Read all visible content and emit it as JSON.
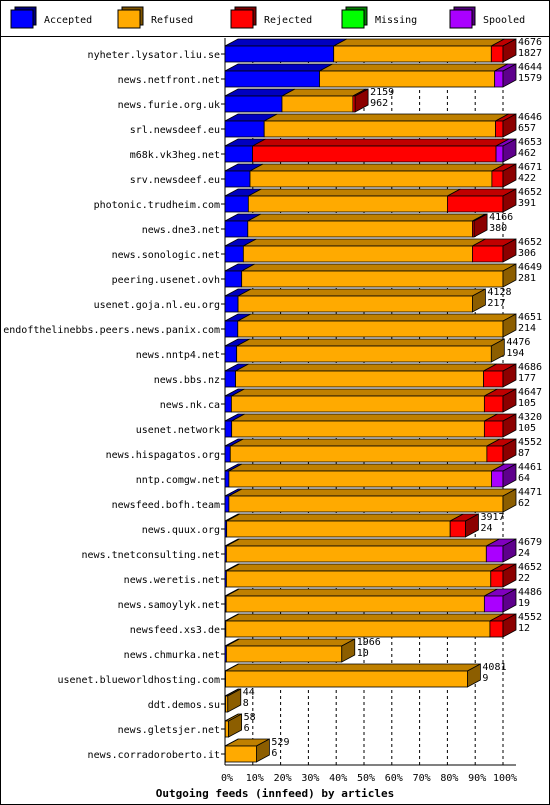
{
  "chart_data": {
    "type": "bar",
    "title": "Outgoing feeds (innfeed) by articles",
    "legend": [
      {
        "name": "Accepted",
        "color": "#0000ff"
      },
      {
        "name": "Refused",
        "color": "#ffaa00"
      },
      {
        "name": "Rejected",
        "color": "#ff0000"
      },
      {
        "name": "Missing",
        "color": "#00ff00"
      },
      {
        "name": "Spooled",
        "color": "#aa00ff"
      }
    ],
    "x_ticks": [
      "0%",
      "10%",
      "20%",
      "30%",
      "40%",
      "50%",
      "60%",
      "70%",
      "80%",
      "90%",
      "100%"
    ],
    "xlim": [
      0,
      100
    ],
    "rows": [
      {
        "name": "nyheter.lysator.liu.se",
        "total": "4676",
        "accepted_count": "1827",
        "segments": [
          39.1,
          56.7,
          4.2,
          0,
          0
        ]
      },
      {
        "name": "news.netfront.net",
        "total": "4644",
        "accepted_count": "1579",
        "segments": [
          34.0,
          63.0,
          0,
          0,
          3.0
        ]
      },
      {
        "name": "news.furie.org.uk",
        "total": "2159",
        "accepted_count": "962",
        "segments": [
          20.5,
          25.5,
          0.8,
          0,
          0
        ]
      },
      {
        "name": "srl.newsdeef.eu",
        "total": "4646",
        "accepted_count": "657",
        "segments": [
          14.1,
          83.2,
          2.7,
          0,
          0
        ]
      },
      {
        "name": "m68k.vk3heg.net",
        "total": "4653",
        "accepted_count": "462",
        "segments": [
          9.9,
          0,
          87.6,
          0,
          2.5
        ]
      },
      {
        "name": "srv.newsdeef.eu",
        "total": "4671",
        "accepted_count": "422",
        "segments": [
          9.0,
          87.0,
          4.0,
          0,
          0
        ]
      },
      {
        "name": "photonic.trudheim.com",
        "total": "4652",
        "accepted_count": "391",
        "segments": [
          8.4,
          71.6,
          20.0,
          0,
          0
        ]
      },
      {
        "name": "news.dne3.net",
        "total": "4166",
        "accepted_count": "380",
        "segments": [
          8.2,
          80.8,
          0.6,
          0,
          0
        ]
      },
      {
        "name": "news.sonologic.net",
        "total": "4652",
        "accepted_count": "306",
        "segments": [
          6.6,
          82.4,
          11.0,
          0,
          0
        ]
      },
      {
        "name": "peering.usenet.ovh",
        "total": "4649",
        "accepted_count": "281",
        "segments": [
          6.0,
          94.0,
          0,
          0,
          0
        ]
      },
      {
        "name": "usenet.goja.nl.eu.org",
        "total": "4128",
        "accepted_count": "217",
        "segments": [
          4.7,
          84.3,
          0,
          0,
          0
        ]
      },
      {
        "name": "endofthelinebbs.peers.news.panix.com",
        "total": "4651",
        "accepted_count": "214",
        "segments": [
          4.6,
          95.4,
          0,
          0,
          0
        ]
      },
      {
        "name": "news.nntp4.net",
        "total": "4476",
        "accepted_count": "194",
        "segments": [
          4.2,
          91.6,
          0,
          0,
          0
        ]
      },
      {
        "name": "news.bbs.nz",
        "total": "4686",
        "accepted_count": "177",
        "segments": [
          3.8,
          89.2,
          7.0,
          0,
          0
        ]
      },
      {
        "name": "news.nk.ca",
        "total": "4647",
        "accepted_count": "105",
        "segments": [
          2.3,
          91.0,
          6.7,
          0,
          0
        ]
      },
      {
        "name": "usenet.network",
        "total": "4320",
        "accepted_count": "105",
        "segments": [
          2.4,
          90.9,
          6.7,
          0,
          0
        ]
      },
      {
        "name": "news.hispagatos.org",
        "total": "4552",
        "accepted_count": "87",
        "segments": [
          1.9,
          92.3,
          5.8,
          0,
          0
        ]
      },
      {
        "name": "nntp.comgw.net",
        "total": "4461",
        "accepted_count": "64",
        "segments": [
          1.4,
          94.5,
          0,
          0,
          4.1
        ]
      },
      {
        "name": "newsfeed.bofh.team",
        "total": "4471",
        "accepted_count": "62",
        "segments": [
          1.4,
          98.6,
          0,
          0,
          0
        ]
      },
      {
        "name": "news.quux.org",
        "total": "3917",
        "accepted_count": "24",
        "segments": [
          0.6,
          80.4,
          5.5,
          0,
          0
        ]
      },
      {
        "name": "news.tnetconsulting.net",
        "total": "4679",
        "accepted_count": "24",
        "segments": [
          0.5,
          93.5,
          0,
          0,
          6.0
        ]
      },
      {
        "name": "news.weretis.net",
        "total": "4652",
        "accepted_count": "22",
        "segments": [
          0.5,
          95.1,
          4.4,
          0,
          0
        ]
      },
      {
        "name": "news.samoylyk.net",
        "total": "4486",
        "accepted_count": "19",
        "segments": [
          0.4,
          92.9,
          0,
          0,
          6.7
        ]
      },
      {
        "name": "newsfeed.xs3.de",
        "total": "4552",
        "accepted_count": "12",
        "segments": [
          0.3,
          95.0,
          4.7,
          0,
          0
        ]
      },
      {
        "name": "news.chmurka.net",
        "total": "1966",
        "accepted_count": "10",
        "segments": [
          0.5,
          41.5,
          0,
          0,
          0
        ]
      },
      {
        "name": "usenet.blueworldhosting.com",
        "total": "4081",
        "accepted_count": "9",
        "segments": [
          0.2,
          87.0,
          0,
          0,
          0
        ]
      },
      {
        "name": "ddt.demos.su",
        "total": "44",
        "accepted_count": "8",
        "segments": [
          0.2,
          0.8,
          0,
          0,
          0
        ]
      },
      {
        "name": "news.gletsjer.net",
        "total": "58",
        "accepted_count": "6",
        "segments": [
          0.1,
          1.2,
          0,
          0,
          0
        ]
      },
      {
        "name": "news.corradoroberto.it",
        "total": "529",
        "accepted_count": "6",
        "segments": [
          0.1,
          11.2,
          0,
          0,
          0
        ]
      }
    ]
  }
}
